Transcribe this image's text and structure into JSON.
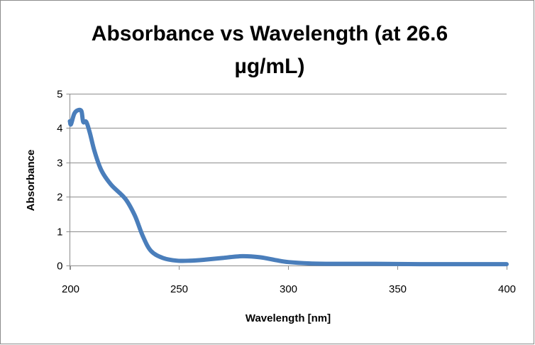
{
  "chart_data": {
    "type": "line",
    "title_lines": [
      "Absorbance vs Wavelength (at 26.6",
      "µg/mL)"
    ],
    "xlabel": "Wavelength [nm]",
    "ylabel": "Absorbance",
    "xlim": [
      200,
      400
    ],
    "ylim": [
      0,
      5
    ],
    "xticks": [
      200,
      250,
      300,
      350,
      400
    ],
    "yticks": [
      0,
      1,
      2,
      3,
      4,
      5
    ],
    "grid": "horizontal",
    "legend": "none",
    "series": [
      {
        "name": "Absorbance",
        "color": "#4a7ebb",
        "x": [
          200,
          200.5,
          202,
          203.7,
          205.3,
          206.1,
          207.5,
          209.1,
          211.3,
          214.5,
          218.9,
          225.4,
          229.7,
          233.5,
          237.2,
          242.6,
          249,
          255,
          262,
          270,
          279,
          287,
          294,
          300,
          310,
          320,
          340,
          360,
          380,
          400
        ],
        "y": [
          4.2,
          4.11,
          4.42,
          4.52,
          4.49,
          4.18,
          4.18,
          3.87,
          3.32,
          2.76,
          2.35,
          1.94,
          1.46,
          0.84,
          0.42,
          0.22,
          0.14,
          0.14,
          0.17,
          0.22,
          0.27,
          0.24,
          0.16,
          0.1,
          0.06,
          0.05,
          0.05,
          0.04,
          0.04,
          0.04
        ]
      }
    ]
  }
}
